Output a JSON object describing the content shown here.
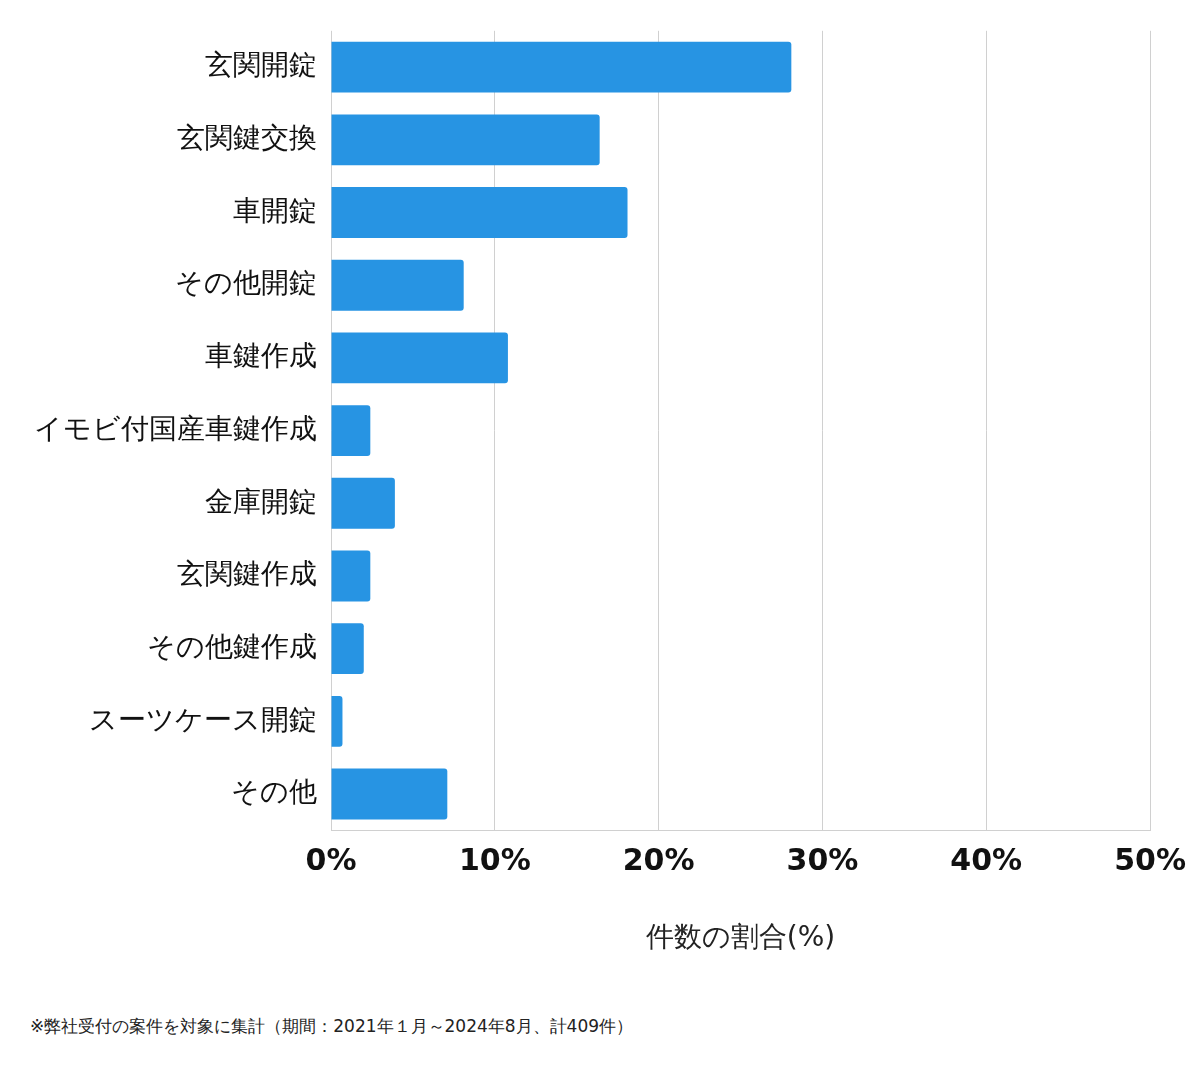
{
  "chart_data": {
    "type": "bar",
    "orientation": "horizontal",
    "categories": [
      "玄関開錠",
      "玄関鍵交換",
      "車開錠",
      "その他開錠",
      "車鍵作成",
      "イモビ付国産車鍵作成",
      "金庫開錠",
      "玄関鍵作成",
      "その他鍵作成",
      "スーツケース開錠",
      "その他"
    ],
    "values": [
      28.1,
      16.4,
      18.1,
      8.1,
      10.8,
      2.4,
      3.9,
      2.4,
      2.0,
      0.7,
      7.1
    ],
    "color": "#2794e3",
    "x_label": "件数の割合(%)",
    "xlim": [
      0,
      50
    ],
    "xticks": [
      {
        "value": 0,
        "label": "0%"
      },
      {
        "value": 10,
        "label": "10%"
      },
      {
        "value": 20,
        "label": "20%"
      },
      {
        "value": 30,
        "label": "30%"
      },
      {
        "value": 40,
        "label": "40%"
      },
      {
        "value": 50,
        "label": "50%"
      }
    ],
    "grid": true,
    "legend": false,
    "annotations": [
      "※弊社受付の案件を対象に集計（期間：2021年１月～2024年8月、計409件）"
    ]
  }
}
